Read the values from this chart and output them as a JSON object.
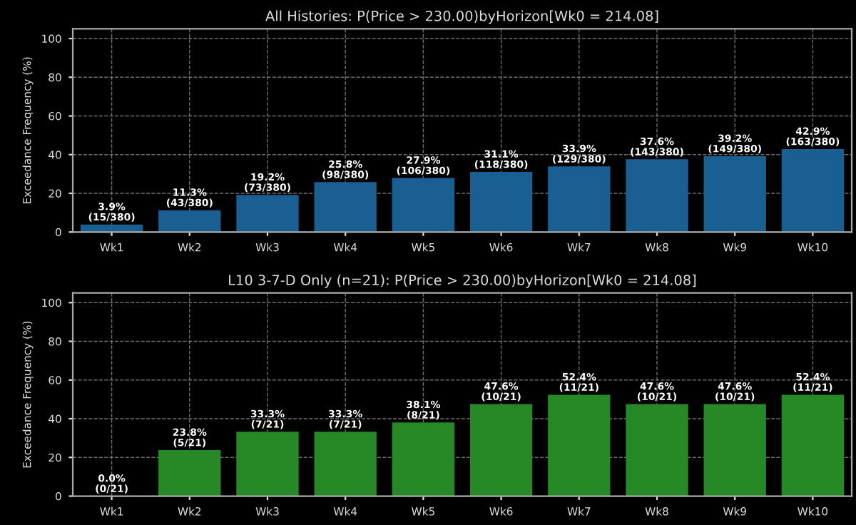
{
  "chart_data": [
    {
      "type": "bar",
      "title": "All Histories: P(Price > 230.00)byHorizon[Wk0 = 214.08]",
      "ylabel": "Exceedance Frequency (%)",
      "categories": [
        "Wk1",
        "Wk2",
        "Wk3",
        "Wk4",
        "Wk5",
        "Wk6",
        "Wk7",
        "Wk8",
        "Wk9",
        "Wk10"
      ],
      "values": [
        3.9,
        11.3,
        19.2,
        25.8,
        27.9,
        31.1,
        33.9,
        37.6,
        39.2,
        42.9
      ],
      "value_labels": [
        "3.9%\n(15/380)",
        "11.3%\n(43/380)",
        "19.2%\n(73/380)",
        "25.8%\n(98/380)",
        "27.9%\n(106/380)",
        "31.1%\n(118/380)",
        "33.9%\n(129/380)",
        "37.6%\n(143/380)",
        "39.2%\n(149/380)",
        "42.9%\n(163/380)"
      ],
      "color": "#1a5f91",
      "ylim": [
        0,
        105
      ],
      "yticks": [
        0,
        20,
        40,
        60,
        80,
        100
      ],
      "grid": true
    },
    {
      "type": "bar",
      "title": "L10 3-7-D Only (n=21): P(Price > 230.00)byHorizon[Wk0 = 214.08]",
      "ylabel": "Exceedance Frequency (%)",
      "categories": [
        "Wk1",
        "Wk2",
        "Wk3",
        "Wk4",
        "Wk5",
        "Wk6",
        "Wk7",
        "Wk8",
        "Wk9",
        "Wk10"
      ],
      "values": [
        0.0,
        23.8,
        33.3,
        33.3,
        38.1,
        47.6,
        52.4,
        47.6,
        47.6,
        52.4
      ],
      "value_labels": [
        "0.0%\n(0/21)",
        "23.8%\n(5/21)",
        "33.3%\n(7/21)",
        "33.3%\n(7/21)",
        "38.1%\n(8/21)",
        "47.6%\n(10/21)",
        "52.4%\n(11/21)",
        "47.6%\n(10/21)",
        "47.6%\n(10/21)",
        "52.4%\n(11/21)"
      ],
      "color": "#268926",
      "ylim": [
        0,
        105
      ],
      "yticks": [
        0,
        20,
        40,
        60,
        80,
        100
      ],
      "grid": true
    }
  ]
}
